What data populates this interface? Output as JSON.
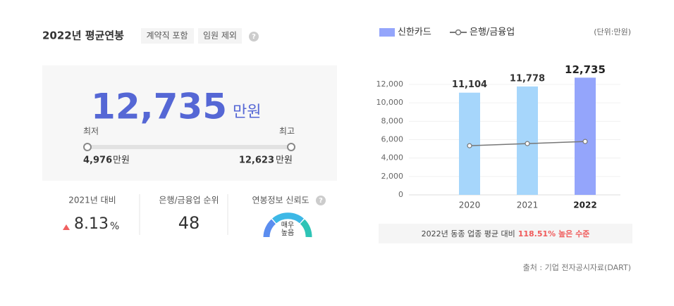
{
  "header": {
    "title": "2022년 평균연봉",
    "tags": [
      "계약직 포함",
      "임원 제외"
    ],
    "help": "?"
  },
  "summary": {
    "amount": "12,735",
    "unit": "만원",
    "min_label": "최저",
    "max_label": "최고",
    "min_amount": "4,976",
    "min_unit": "만원",
    "max_amount": "12,623",
    "max_unit": "만원"
  },
  "stats": [
    {
      "label": "2021년 대비",
      "value": "8.13",
      "unit": "%"
    },
    {
      "label": "은행/금융업 순위",
      "value": "48"
    },
    {
      "label": "연봉정보 신뢰도",
      "help": "?",
      "gauge_text": [
        "매우",
        "높음"
      ]
    }
  ],
  "chart_data": {
    "type": "bar",
    "unit_label": "(단위:만원)",
    "categories": [
      "2020",
      "2021",
      "2022"
    ],
    "series": [
      {
        "name": "신한카드",
        "type": "bar",
        "color": "#94a5fb",
        "colors": [
          "#a6d6fb",
          "#a6d6fb",
          "#94a5fb"
        ],
        "values": [
          11104,
          11778,
          12735
        ],
        "value_labels": [
          "11,104",
          "11,778",
          "12,735"
        ]
      },
      {
        "name": "은행/금융업",
        "type": "line",
        "color": "#777777",
        "values": [
          5340,
          5570,
          5800
        ]
      }
    ],
    "ylim": [
      0,
      13300
    ],
    "yticks": [
      0,
      {
        "value": 2000,
        "label": "2,000"
      },
      {
        "value": 4000,
        "label": "4,000"
      },
      {
        "value": 6000,
        "label": "6,000"
      },
      {
        "value": 8000,
        "label": "8,000"
      },
      {
        "value": 10000,
        "label": "10,000"
      },
      {
        "value": 12000,
        "label": "12,000"
      }
    ],
    "grid": true
  },
  "comparison": {
    "text": "2022년 동종 업종 평균 대비",
    "highlight": "118.51% 높은 수준"
  },
  "source": "출처 : 기업 전자공시자료(DART)"
}
